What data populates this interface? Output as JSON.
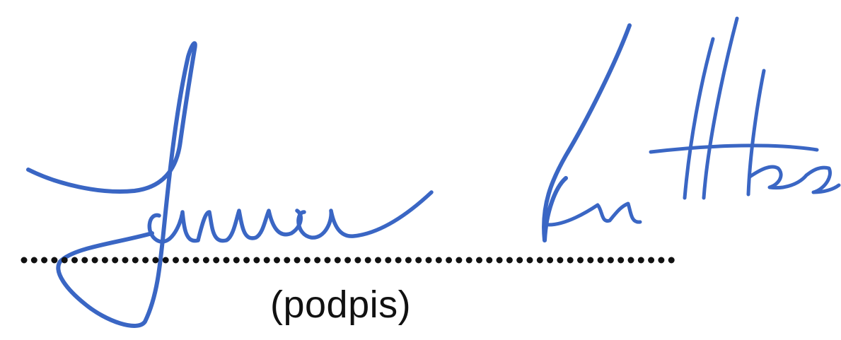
{
  "signature": {
    "caption": "(podpis)",
    "ink_color": "#3a66c4",
    "line_color": "#111111",
    "description_icon": "handwritten-signature"
  }
}
